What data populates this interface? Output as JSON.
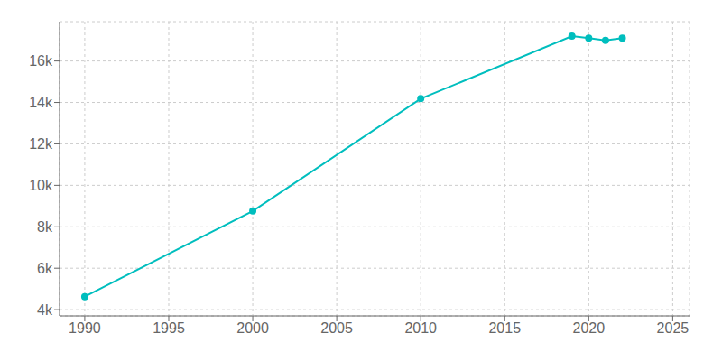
{
  "chart_data": {
    "type": "line",
    "x": [
      1990,
      2000,
      2010,
      2019,
      2020,
      2021,
      2022
    ],
    "values": [
      4630,
      8762,
      14182,
      17200,
      17110,
      17000,
      17100
    ],
    "color": "#00BEBE",
    "marker": "o",
    "xlim": [
      1988.5,
      2026
    ],
    "ylim": [
      3700,
      17900
    ],
    "xticks": [
      1990,
      1995,
      2000,
      2005,
      2010,
      2015,
      2020,
      2025
    ],
    "yticks": [
      {
        "value": 4000,
        "label": "4k"
      },
      {
        "value": 6000,
        "label": "6k"
      },
      {
        "value": 8000,
        "label": "8k"
      },
      {
        "value": 10000,
        "label": "10k"
      },
      {
        "value": 12000,
        "label": "12k"
      },
      {
        "value": 14000,
        "label": "14k"
      },
      {
        "value": 16000,
        "label": "16k"
      }
    ],
    "grid": true
  }
}
